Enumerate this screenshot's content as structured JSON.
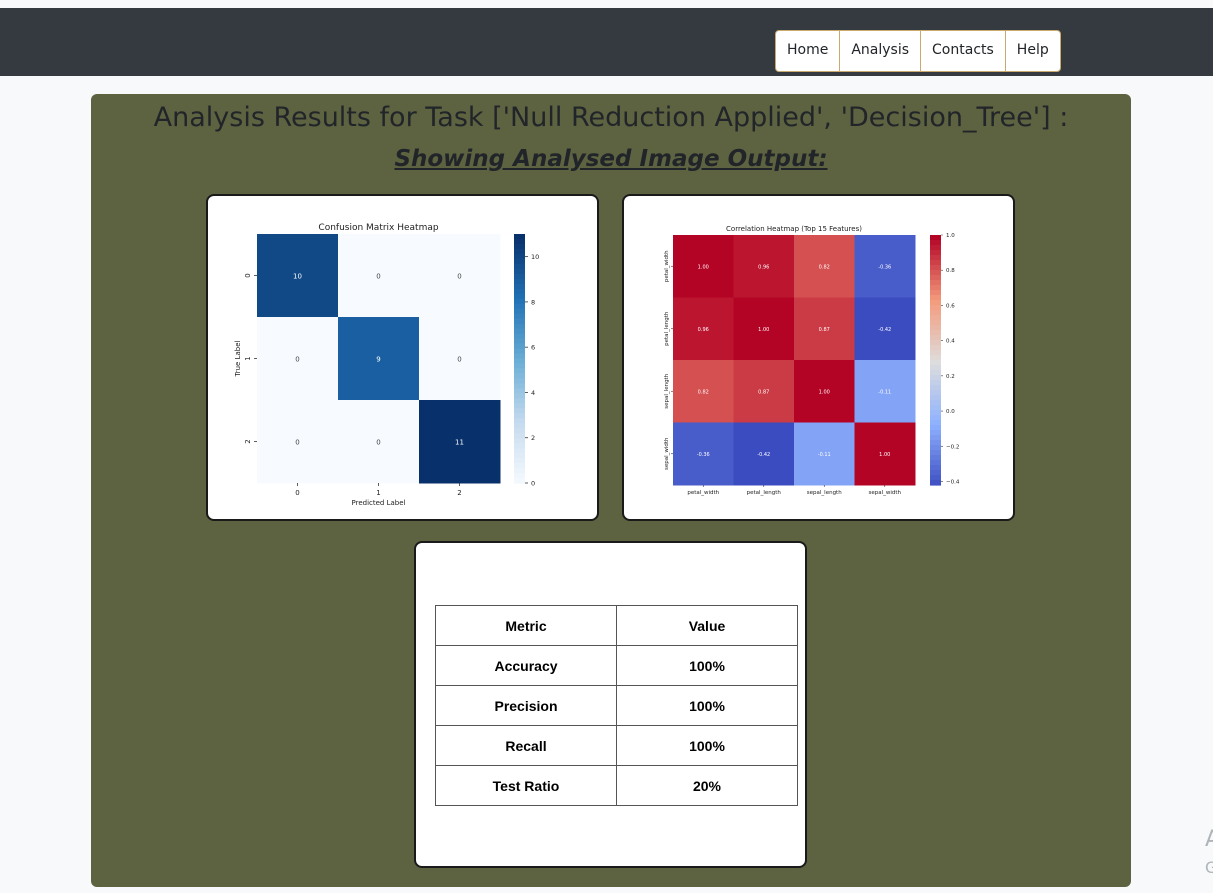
{
  "nav": {
    "items": [
      "Home",
      "Analysis",
      "Contacts",
      "Help"
    ]
  },
  "header": {
    "title": "Analysis Results for Task ['Null Reduction Applied', 'Decision_Tree'] :",
    "subtitle": "Showing Analysed Image Output:"
  },
  "chart_data": [
    {
      "type": "heatmap",
      "title": "Confusion Matrix Heatmap",
      "xlabel": "Predicted Label",
      "ylabel": "True Label",
      "x_ticks": [
        "0",
        "1",
        "2"
      ],
      "y_ticks": [
        "0",
        "1",
        "2"
      ],
      "values": [
        [
          10,
          0,
          0
        ],
        [
          0,
          9,
          0
        ],
        [
          0,
          0,
          11
        ]
      ],
      "colormap": "Blues",
      "colorbar_ticks": [
        0,
        2,
        4,
        6,
        8,
        10
      ],
      "colorbar_range": [
        0,
        11
      ]
    },
    {
      "type": "heatmap",
      "title": "Correlation Heatmap (Top 15 Features)",
      "labels": [
        "petal_width",
        "petal_length",
        "sepal_length",
        "sepal_width"
      ],
      "values": [
        [
          1.0,
          0.96,
          0.82,
          -0.36
        ],
        [
          0.96,
          1.0,
          0.87,
          -0.42
        ],
        [
          0.82,
          0.87,
          1.0,
          -0.11
        ],
        [
          -0.36,
          -0.42,
          -0.11,
          1.0
        ]
      ],
      "value_labels": [
        [
          "1.00",
          "0.96",
          "0.82",
          "-0.36"
        ],
        [
          "0.96",
          "1.00",
          "0.87",
          "-0.42"
        ],
        [
          "0.82",
          "0.87",
          "1.00",
          "-0.11"
        ],
        [
          "-0.36",
          "-0.42",
          "-0.11",
          "1.00"
        ]
      ],
      "colormap": "coolwarm",
      "colorbar_ticks": [
        "1.0",
        "0.8",
        "0.6",
        "0.4",
        "0.2",
        "0.0",
        "−0.2",
        "−0.4"
      ],
      "colorbar_range": [
        -0.42,
        1.0
      ]
    },
    {
      "type": "table",
      "headers": [
        "Metric",
        "Value"
      ],
      "rows": [
        [
          "Accuracy",
          "100%"
        ],
        [
          "Precision",
          "100%"
        ],
        [
          "Recall",
          "100%"
        ],
        [
          "Test Ratio",
          "20%"
        ]
      ]
    }
  ],
  "watermark": {
    "line1": "A",
    "line2": "G"
  }
}
